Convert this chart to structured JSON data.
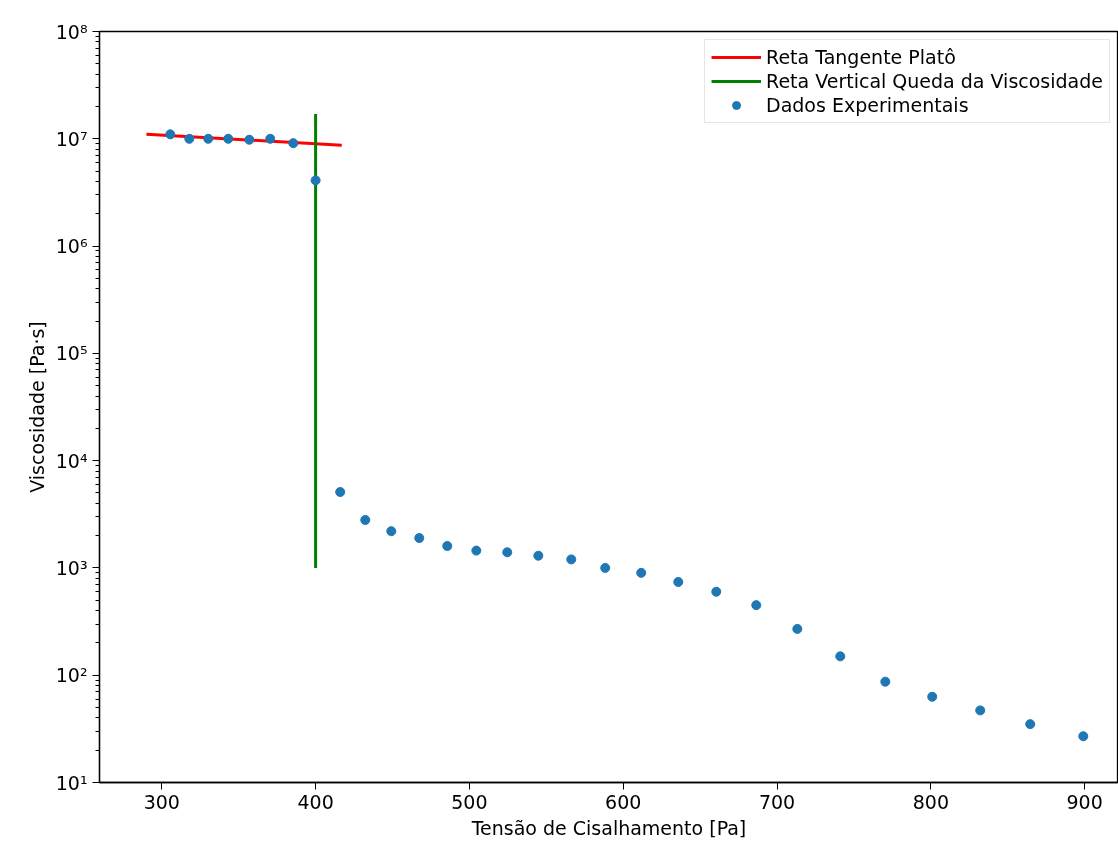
{
  "chart_data": {
    "type": "scatter",
    "xlabel": "Tensão de Cisalhamento [Pa]",
    "ylabel": "Viscosidade [Pa·s]",
    "log": "y",
    "grid": false,
    "legend": "top right",
    "xlim": [
      259.5,
      922
    ],
    "ylim": [
      10,
      100000000
    ],
    "xticks": [
      300,
      400,
      500,
      600,
      700,
      800,
      900
    ],
    "yticks": [
      {
        "value": 10,
        "label": "10¹"
      },
      {
        "value": 100,
        "label": "10²"
      },
      {
        "value": 1000,
        "label": "10³"
      },
      {
        "value": 10000,
        "label": "10⁴"
      },
      {
        "value": 100000,
        "label": "10⁵"
      },
      {
        "value": 1000000,
        "label": "10⁶"
      },
      {
        "value": 10000000,
        "label": "10⁷"
      },
      {
        "value": 100000000,
        "label": "10⁸"
      }
    ],
    "series": [
      {
        "name": "Reta Tangente Platô",
        "type": "line",
        "line_style": "solid",
        "color": "#ff0000",
        "x": [
          290,
          417
        ],
        "values": [
          11000000,
          8700000
        ]
      },
      {
        "name": "Reta Vertical Queda da Viscosidade",
        "type": "line",
        "line_style": "solid",
        "color": "#008000",
        "x": [
          400,
          400
        ],
        "values": [
          1000,
          17000000
        ]
      },
      {
        "name": "Dados Experimentais",
        "marker": "circle",
        "color": "#1f77b4",
        "x": [
          305.5,
          317.9,
          330.2,
          343.2,
          356.9,
          370.5,
          385.5,
          400,
          416,
          432.3,
          449.2,
          467.4,
          485.6,
          504.5,
          524.6,
          544.8,
          566.2,
          588.3,
          611.7,
          635.8,
          660.5,
          686.5,
          713.2,
          741.1,
          770.4,
          800.9,
          832.1,
          864.6,
          899.1
        ],
        "values": [
          11000000,
          10000000,
          10000000,
          10000000,
          9800000,
          10000000,
          9100000,
          4100000,
          5100,
          2800,
          2200,
          1900,
          1600,
          1450,
          1400,
          1300,
          1200,
          1000,
          900,
          740,
          600,
          450,
          270,
          150,
          87,
          63,
          47,
          35,
          27
        ]
      }
    ]
  }
}
